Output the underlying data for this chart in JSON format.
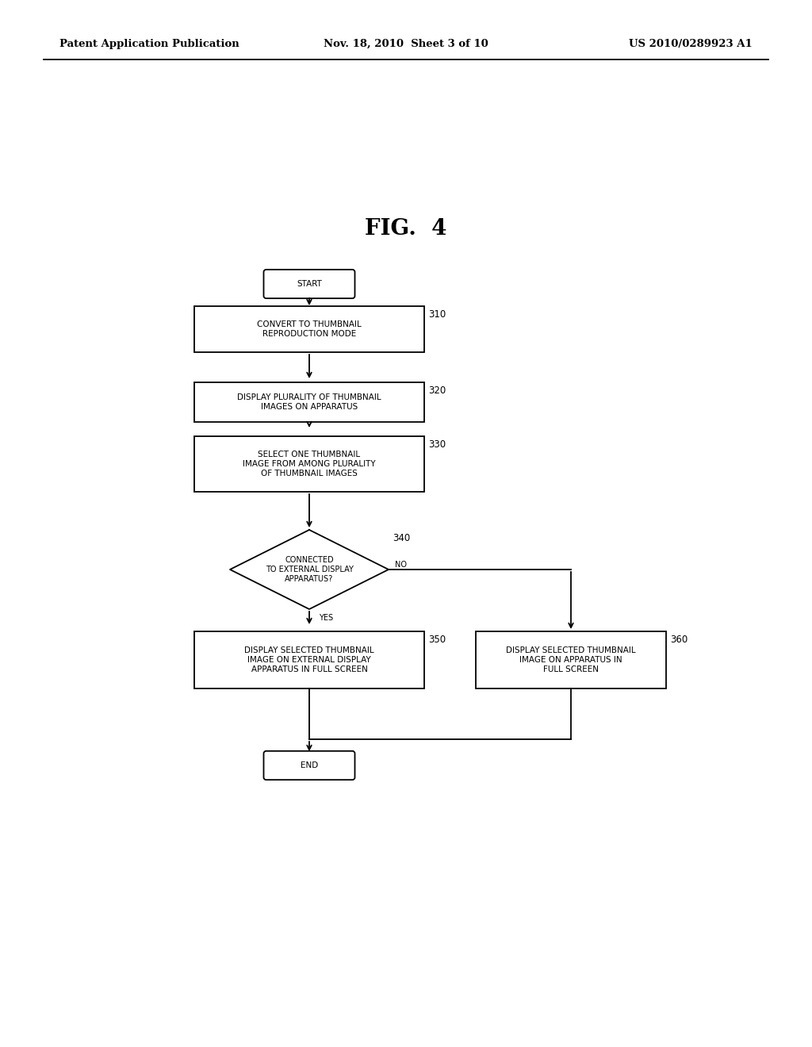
{
  "bg_color": "#ffffff",
  "header_left": "Patent Application Publication",
  "header_mid": "Nov. 18, 2010  Sheet 3 of 10",
  "header_right": "US 2010/0289923 A1",
  "fig_title": "FIG.  4",
  "text_fontsize": 7.5,
  "tag_fontsize": 8.5,
  "header_fontsize": 9.5,
  "fig_title_fontsize": 20
}
